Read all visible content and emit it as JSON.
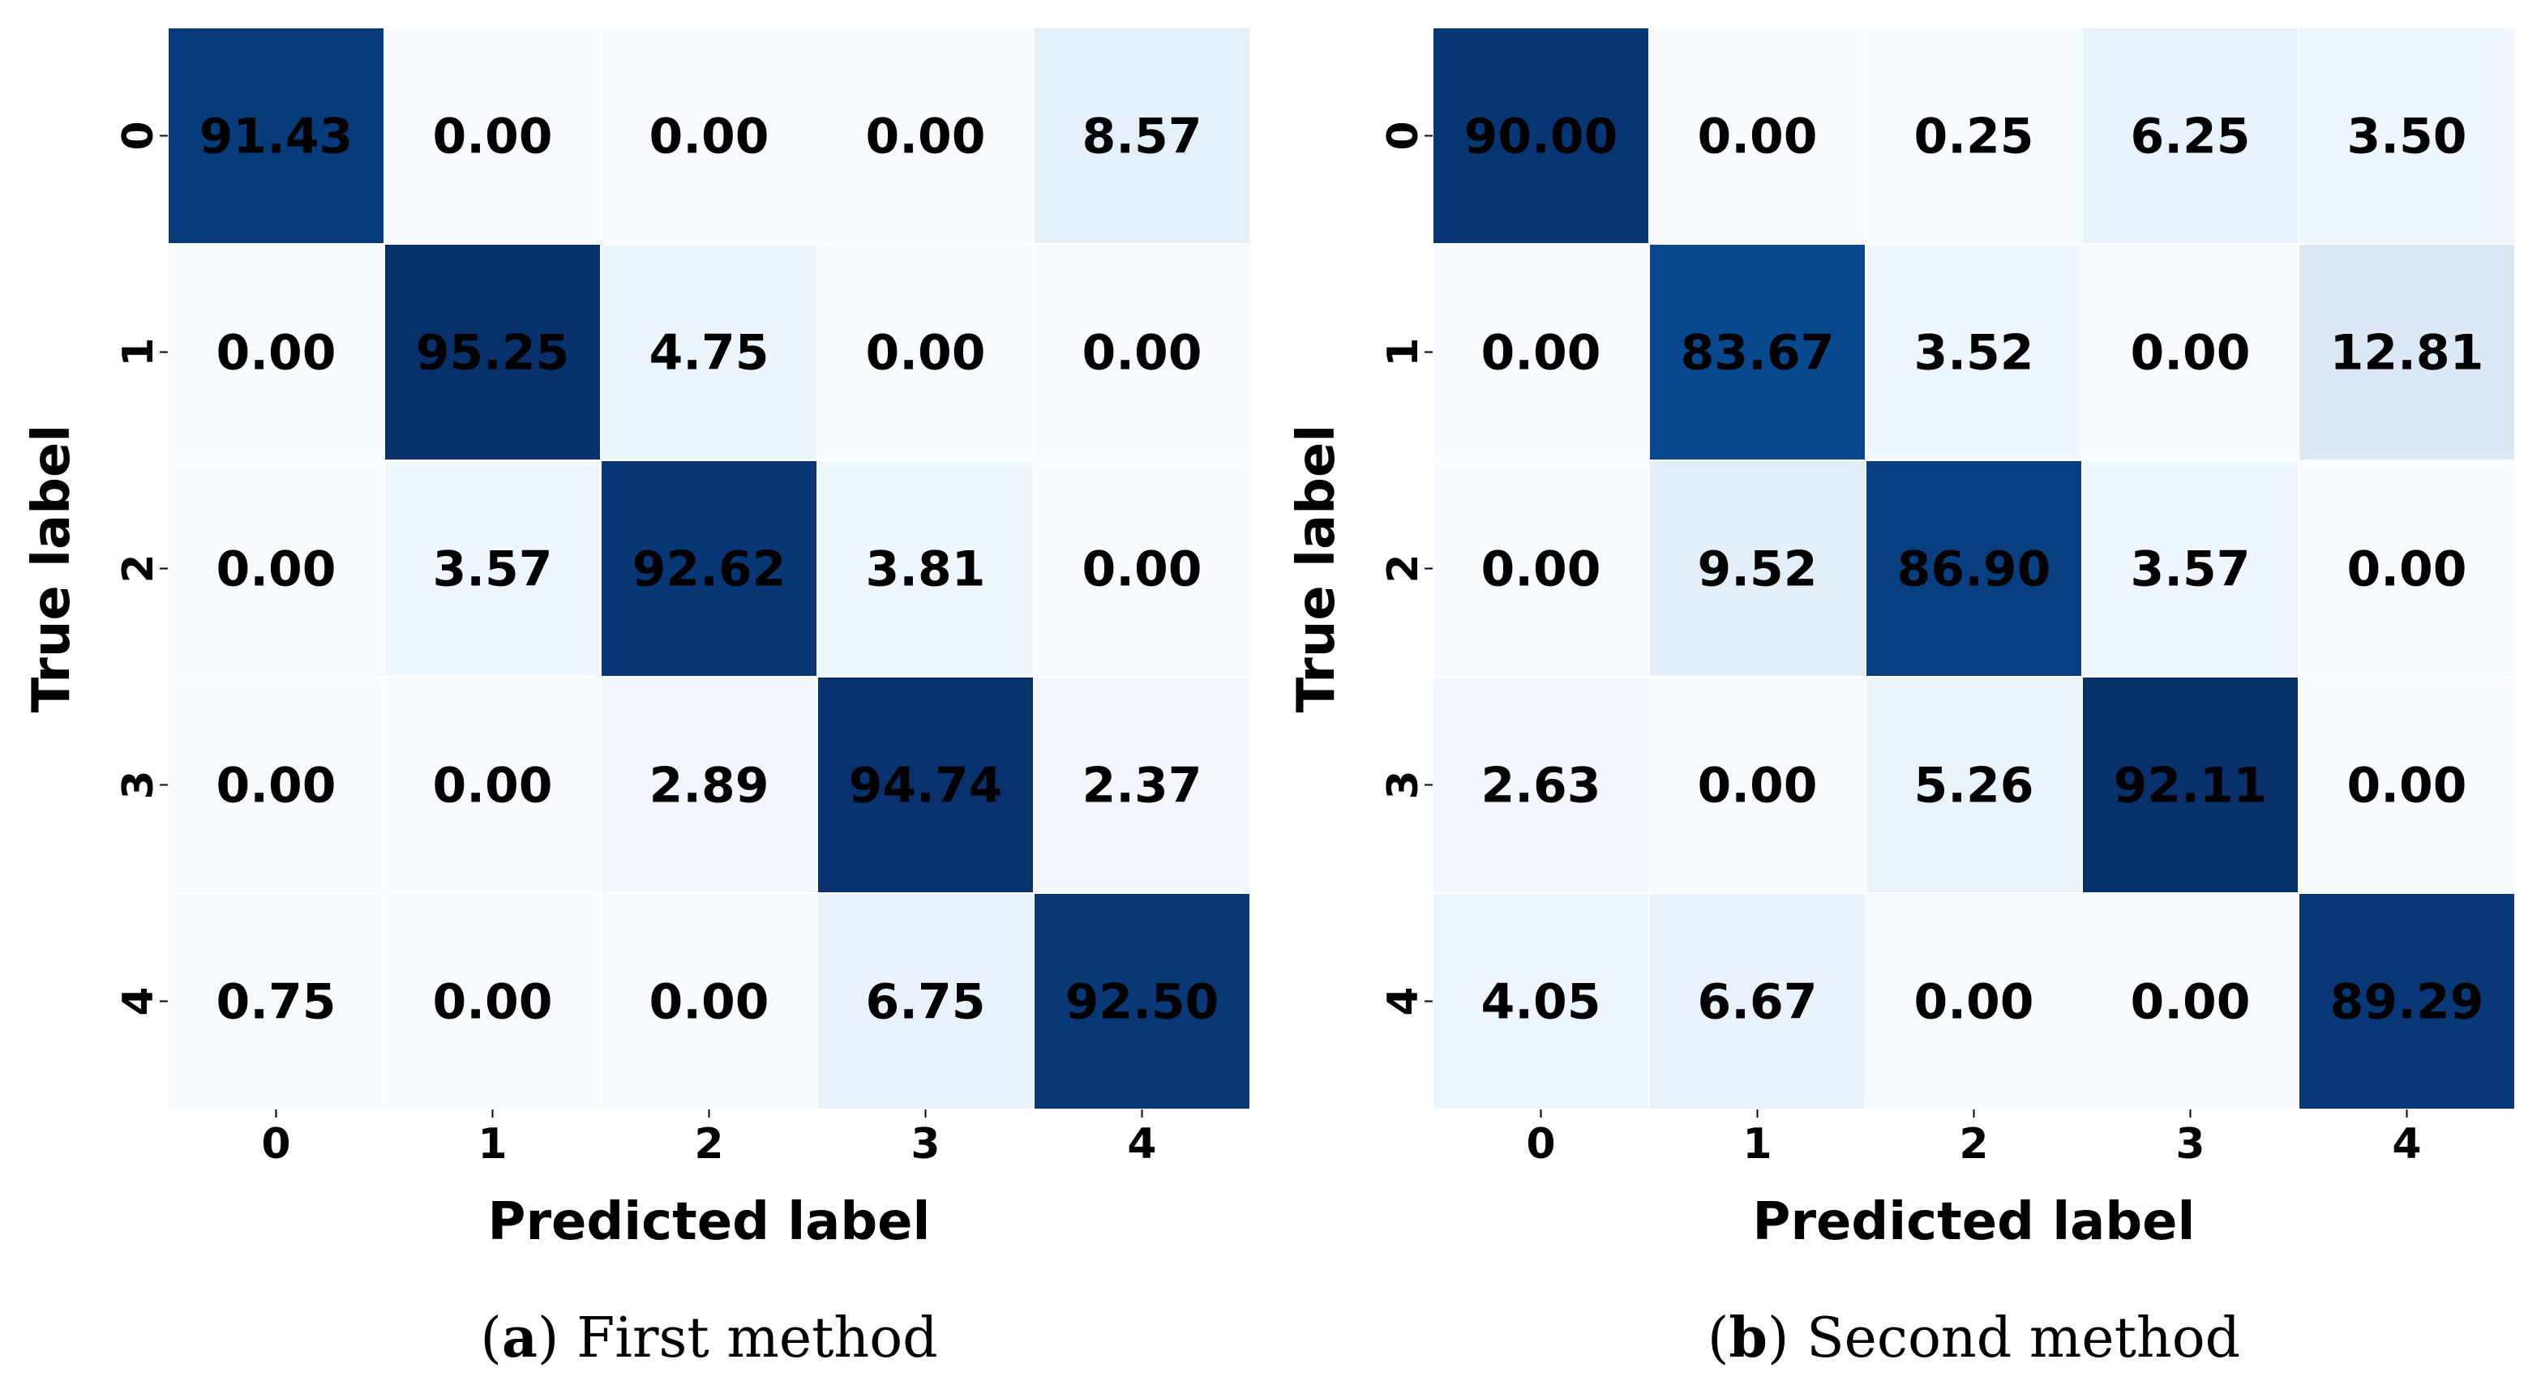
{
  "chart_data": [
    {
      "type": "heatmap",
      "caption_letter": "a",
      "caption_text": "First method",
      "xlabel": "Predicted label",
      "ylabel": "True label",
      "x_tick_labels": [
        "0",
        "1",
        "2",
        "3",
        "4"
      ],
      "y_tick_labels": [
        "0",
        "1",
        "2",
        "3",
        "4"
      ],
      "values": [
        [
          91.43,
          0.0,
          0.0,
          0.0,
          8.57
        ],
        [
          0.0,
          95.25,
          4.75,
          0.0,
          0.0
        ],
        [
          0.0,
          3.57,
          92.62,
          3.81,
          0.0
        ],
        [
          0.0,
          0.0,
          2.89,
          94.74,
          2.37
        ],
        [
          0.75,
          0.0,
          0.0,
          6.75,
          92.5
        ]
      ],
      "value_labels": [
        [
          "91.43",
          "0.00",
          "0.00",
          "0.00",
          "8.57"
        ],
        [
          "0.00",
          "95.25",
          "4.75",
          "0.00",
          "0.00"
        ],
        [
          "0.00",
          "3.57",
          "92.62",
          "3.81",
          "0.00"
        ],
        [
          "0.00",
          "0.00",
          "2.89",
          "94.74",
          "2.37"
        ],
        [
          "0.75",
          "0.00",
          "0.00",
          "6.75",
          "92.50"
        ]
      ],
      "colormap": "Blues",
      "colorbar": false,
      "grid": false
    },
    {
      "type": "heatmap",
      "caption_letter": "b",
      "caption_text": "Second method",
      "xlabel": "Predicted label",
      "ylabel": "True label",
      "x_tick_labels": [
        "0",
        "1",
        "2",
        "3",
        "4"
      ],
      "y_tick_labels": [
        "0",
        "1",
        "2",
        "3",
        "4"
      ],
      "values": [
        [
          90.0,
          0.0,
          0.25,
          6.25,
          3.5
        ],
        [
          0.0,
          83.67,
          3.52,
          0.0,
          12.81
        ],
        [
          0.0,
          9.52,
          86.9,
          3.57,
          0.0
        ],
        [
          2.63,
          0.0,
          5.26,
          92.11,
          0.0
        ],
        [
          4.05,
          6.67,
          0.0,
          0.0,
          89.29
        ]
      ],
      "value_labels": [
        [
          "90.00",
          "0.00",
          "0.25",
          "6.25",
          "3.50"
        ],
        [
          "0.00",
          "83.67",
          "3.52",
          "0.00",
          "12.81"
        ],
        [
          "0.00",
          "9.52",
          "86.90",
          "3.57",
          "0.00"
        ],
        [
          "2.63",
          "0.00",
          "5.26",
          "92.11",
          "0.00"
        ],
        [
          "4.05",
          "6.67",
          "0.00",
          "0.00",
          "89.29"
        ]
      ],
      "colormap": "Blues",
      "colorbar": false,
      "grid": false
    }
  ],
  "colors": {
    "cell_border": "#ffffff",
    "text": "#000000",
    "scale_stops": [
      "#f7fbff",
      "#deebf7",
      "#c6dbef",
      "#9ecae1",
      "#6baed6",
      "#4292c6",
      "#2171b5",
      "#08519c",
      "#08306b"
    ]
  }
}
